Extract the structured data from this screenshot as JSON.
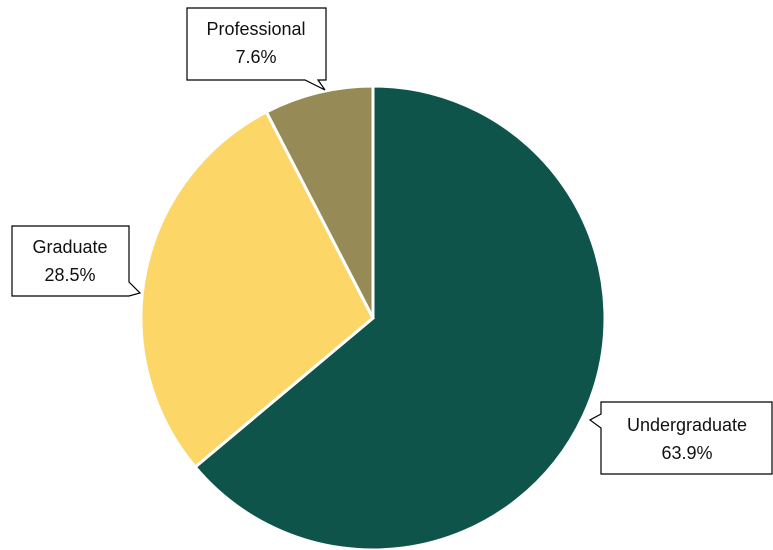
{
  "chart_data": {
    "type": "pie",
    "categories": [
      "Undergraduate",
      "Graduate",
      "Professional"
    ],
    "values": [
      63.9,
      28.5,
      7.6
    ],
    "value_labels": [
      "63.9%",
      "28.5%",
      "7.6%"
    ],
    "colors": [
      "#0e544a",
      "#fdd668",
      "#968b56"
    ]
  }
}
